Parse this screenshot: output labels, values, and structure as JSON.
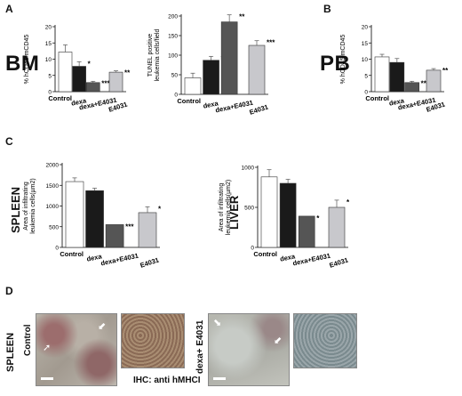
{
  "panels": {
    "A": {
      "letter": "A",
      "tag": "BM"
    },
    "B": {
      "letter": "B",
      "tag": "PB"
    },
    "C": {
      "letter": "C"
    },
    "D": {
      "letter": "D",
      "organ": "SPLEEN",
      "sample1": "Control",
      "sample2": "dexa+ E4031",
      "caption": "IHC: anti hMHCI"
    }
  },
  "organ_labels": {
    "spleen": "SPLEEN",
    "liver": "LIVER"
  },
  "colors": {
    "control": "#ffffff",
    "dexa": "#1a1a1a",
    "dexa_e4031": "#555555",
    "e4031": "#c8c8cc"
  },
  "chart_data": [
    {
      "id": "bm-hcd45",
      "type": "bar",
      "categories": [
        "Control",
        "dexa",
        "dexa+E4031",
        "E4031"
      ],
      "values": [
        12.2,
        7.8,
        2.8,
        6.0
      ],
      "errors": [
        2.2,
        1.4,
        0.4,
        0.4
      ],
      "significance": [
        "",
        "*",
        "***",
        "**"
      ],
      "ylabel": "% hCD45/mCD45",
      "ylim": [
        0,
        20
      ],
      "yticks": [
        "0",
        "5",
        "10",
        "15",
        "20"
      ],
      "grid": false
    },
    {
      "id": "bm-tunel",
      "type": "bar",
      "categories": [
        "Control",
        "dexa",
        "dexa+E4031",
        "E4031"
      ],
      "values": [
        42,
        87,
        185,
        125
      ],
      "errors": [
        12,
        10,
        18,
        12
      ],
      "significance": [
        "",
        "**",
        "**",
        "***"
      ],
      "ylabel": "TUNEL positive leukemia cells/field",
      "ylim": [
        0,
        200
      ],
      "yticks": [
        "0",
        "50",
        "100",
        "150",
        "200"
      ],
      "grid": false
    },
    {
      "id": "pb-hcd45",
      "type": "bar",
      "categories": [
        "Control",
        "dexa",
        "dexa+E4031",
        "E4031"
      ],
      "values": [
        10.7,
        9.0,
        2.8,
        6.6
      ],
      "errors": [
        0.8,
        1.2,
        0.4,
        0.5
      ],
      "significance": [
        "",
        "",
        "**",
        "**"
      ],
      "ylabel": "% hCD45/mCD45",
      "ylim": [
        0,
        20
      ],
      "yticks": [
        "0",
        "5",
        "10",
        "15",
        "20"
      ],
      "grid": false
    },
    {
      "id": "spleen-area",
      "type": "bar",
      "categories": [
        "Control",
        "dexa",
        "dexa+E4031",
        "E4031"
      ],
      "values": [
        1590,
        1370,
        550,
        840
      ],
      "errors": [
        90,
        60,
        0,
        140
      ],
      "significance": [
        "",
        "",
        "***",
        "*"
      ],
      "ylabel": "Area of infiltrating leukemia cells(µm2)",
      "ylim": [
        0,
        2000
      ],
      "yticks": [
        "0",
        "500",
        "1000",
        "1500",
        "2000"
      ],
      "grid": false
    },
    {
      "id": "liver-area",
      "type": "bar",
      "categories": [
        "Control",
        "dexa",
        "dexa+E4031",
        "E4031"
      ],
      "values": [
        880,
        800,
        390,
        500
      ],
      "errors": [
        90,
        50,
        0,
        90
      ],
      "significance": [
        "",
        "",
        "*",
        "*"
      ],
      "ylabel": "Area of infiltrating leukemia cells(µm2)",
      "ylim": [
        0,
        1000
      ],
      "yticks": [
        "0",
        "500",
        "1000"
      ],
      "grid": false
    }
  ]
}
